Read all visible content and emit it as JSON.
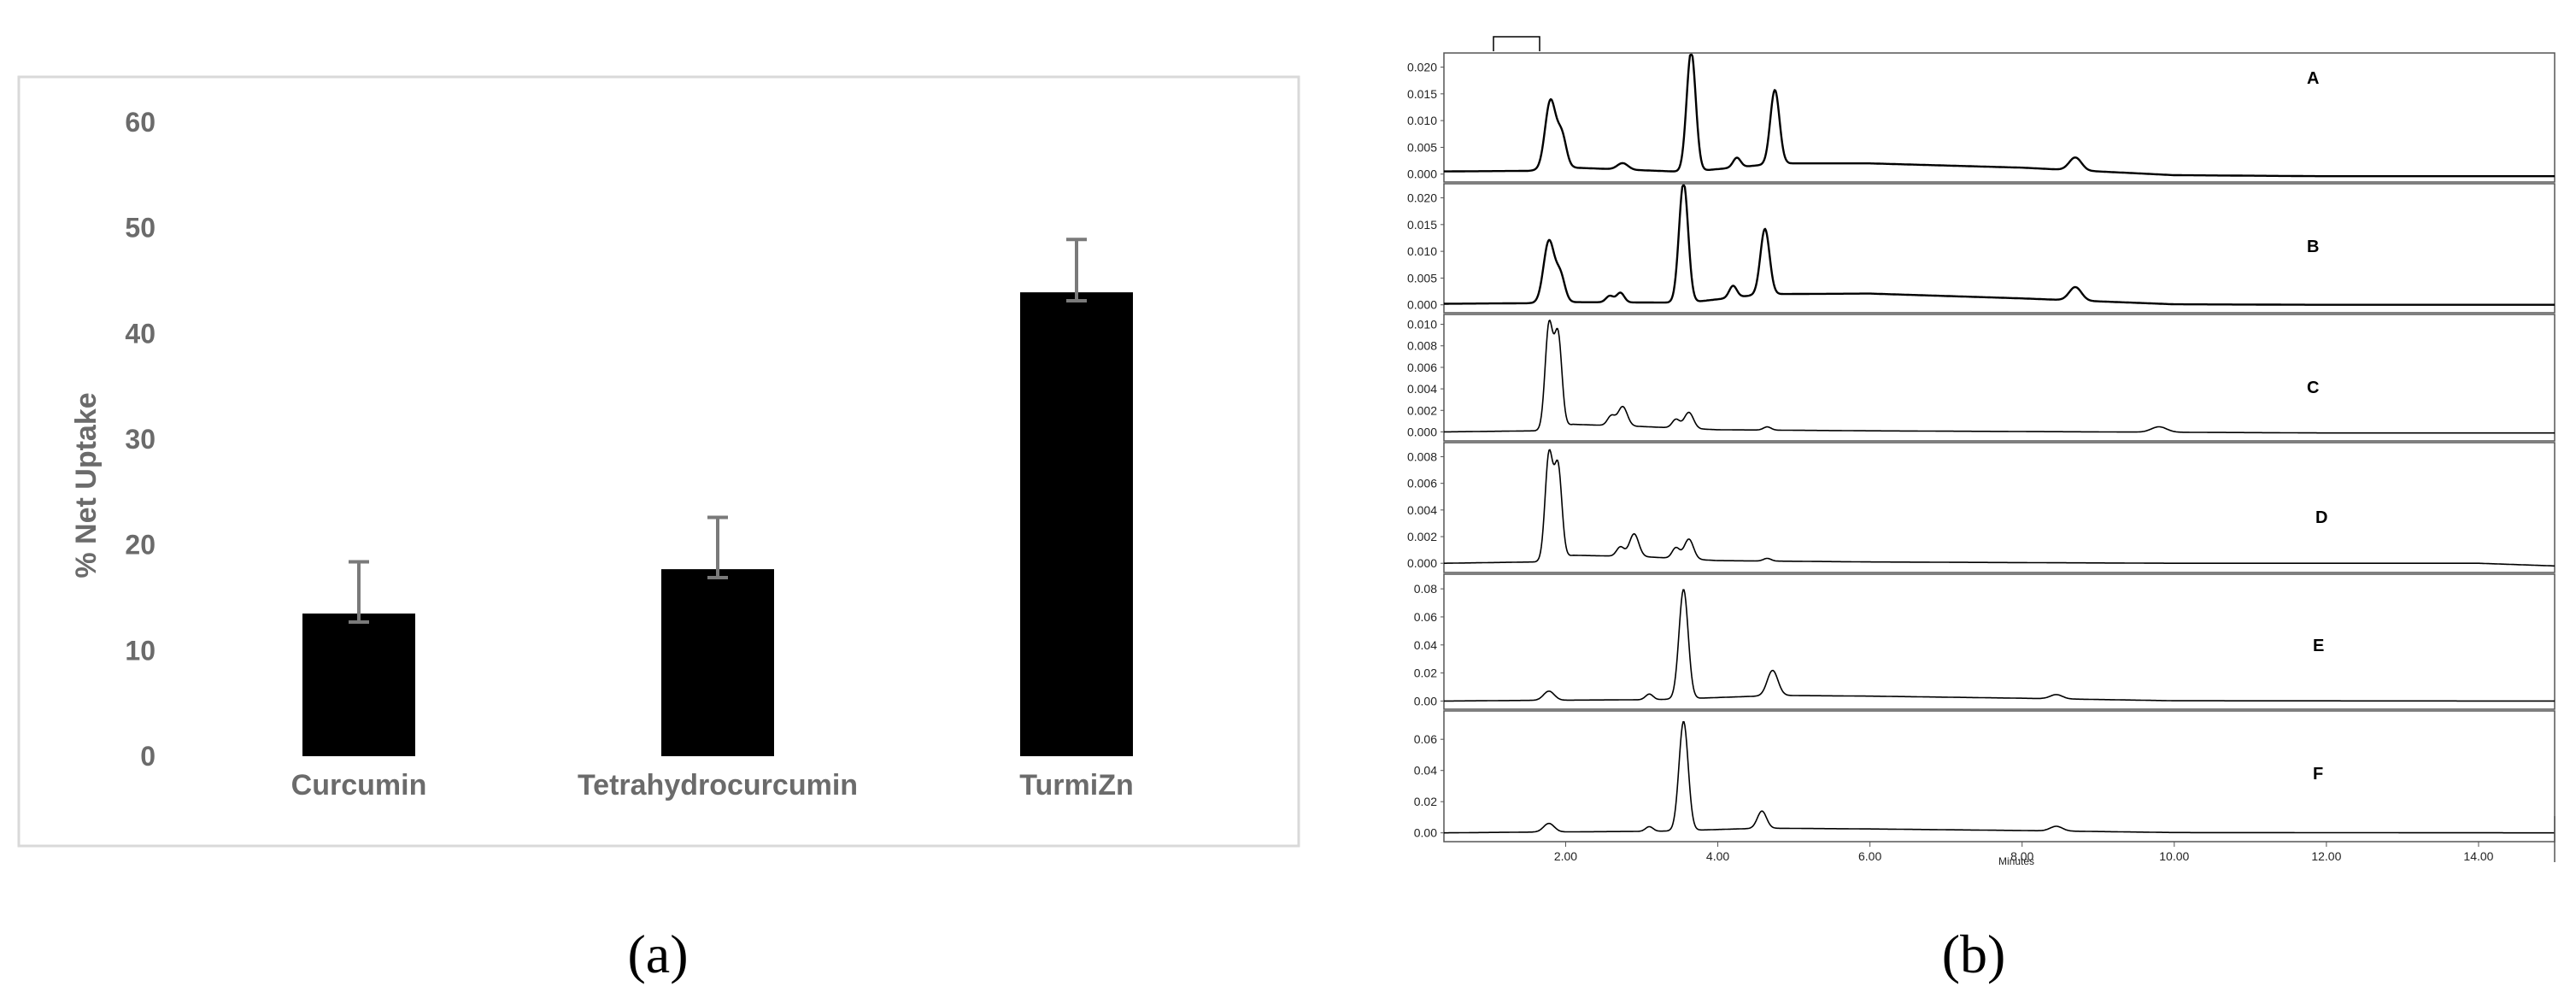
{
  "chart_data": [
    {
      "type": "bar",
      "categories": [
        "Curcumin",
        "Tetrahydrocurcumin",
        "TurmiZn"
      ],
      "values": [
        13.5,
        17.7,
        43.9
      ],
      "error_upper": [
        18.4,
        22.6,
        48.9
      ],
      "error_lower": [
        12.7,
        16.9,
        43.1
      ],
      "ylabel": "% Net Uptake",
      "ylim": [
        0,
        60
      ],
      "yticks": [
        0,
        10,
        20,
        30,
        40,
        50,
        60
      ],
      "bar_color": "#000000",
      "grid": false,
      "caption": "(a)"
    },
    {
      "type": "line",
      "xlabel": "Minutes",
      "xlim": [
        0.4,
        15.0
      ],
      "xticks": [
        2,
        4,
        6,
        8,
        10,
        12,
        14
      ],
      "xtick_labels": [
        "2.00",
        "4.00",
        "6.00",
        "8.00",
        "10.00",
        "12.00",
        "14.00"
      ],
      "caption": "(b)",
      "line_color": "#000000",
      "panels": [
        {
          "label": "A",
          "ylim": [
            -0.001,
            0.022
          ],
          "yticks": [
            "0.020",
            "0.015",
            "0.010",
            "0.005",
            "0.000"
          ],
          "baseline": [
            [
              0.4,
              0.0005
            ],
            [
              1.5,
              0.0006
            ],
            [
              2.1,
              0.0012
            ],
            [
              3.6,
              0.0004
            ],
            [
              4.8,
              0.002
            ],
            [
              6.0,
              0.002
            ],
            [
              8.0,
              0.0012
            ],
            [
              10.0,
              -0.0002
            ],
            [
              12.0,
              -0.0004
            ],
            [
              15.0,
              -0.0004
            ]
          ],
          "peaks": [
            {
              "rt": 1.8,
              "height": 0.0128,
              "width": 0.07
            },
            {
              "rt": 1.95,
              "height": 0.006,
              "width": 0.06
            },
            {
              "rt": 2.75,
              "height": 0.0012,
              "width": 0.07
            },
            {
              "rt": 3.65,
              "height": 0.0225,
              "width": 0.06
            },
            {
              "rt": 4.25,
              "height": 0.0018,
              "width": 0.05
            },
            {
              "rt": 4.75,
              "height": 0.0138,
              "width": 0.06
            },
            {
              "rt": 8.7,
              "height": 0.0024,
              "width": 0.08
            }
          ]
        },
        {
          "label": "B",
          "ylim": [
            -0.001,
            0.022
          ],
          "yticks": [
            "0.020",
            "0.015",
            "0.010",
            "0.005",
            "0.000"
          ],
          "baseline": [
            [
              0.4,
              0.0002
            ],
            [
              1.5,
              0.0003
            ],
            [
              2.1,
              0.0005
            ],
            [
              3.6,
              0.0004
            ],
            [
              4.6,
              0.002
            ],
            [
              6.0,
              0.0021
            ],
            [
              8.0,
              0.0012
            ],
            [
              10.0,
              0.0001
            ],
            [
              12.0,
              0.0
            ],
            [
              15.0,
              0.0
            ]
          ],
          "peaks": [
            {
              "rt": 1.78,
              "height": 0.0115,
              "width": 0.07
            },
            {
              "rt": 1.93,
              "height": 0.005,
              "width": 0.06
            },
            {
              "rt": 2.58,
              "height": 0.0012,
              "width": 0.05
            },
            {
              "rt": 2.72,
              "height": 0.0018,
              "width": 0.05
            },
            {
              "rt": 3.55,
              "height": 0.0225,
              "width": 0.06
            },
            {
              "rt": 4.2,
              "height": 0.0022,
              "width": 0.05
            },
            {
              "rt": 4.62,
              "height": 0.0122,
              "width": 0.06
            },
            {
              "rt": 8.7,
              "height": 0.0025,
              "width": 0.08
            }
          ]
        },
        {
          "label": "C",
          "ylim": [
            -0.0006,
            0.0106
          ],
          "yticks": [
            "0.010",
            "0.008",
            "0.006",
            "0.004",
            "0.002",
            "0.000"
          ],
          "baseline": [
            [
              0.4,
              0.0
            ],
            [
              1.6,
              0.0001
            ],
            [
              2.1,
              0.0007
            ],
            [
              3.0,
              0.0005
            ],
            [
              4.0,
              0.0002
            ],
            [
              6.0,
              0.0001
            ],
            [
              9.0,
              0.0
            ],
            [
              12.0,
              -0.0001
            ],
            [
              15.0,
              -0.0001
            ]
          ],
          "peaks": [
            {
              "rt": 1.78,
              "height": 0.0095,
              "width": 0.05
            },
            {
              "rt": 1.9,
              "height": 0.0085,
              "width": 0.05
            },
            {
              "rt": 2.6,
              "height": 0.0009,
              "width": 0.05
            },
            {
              "rt": 2.75,
              "height": 0.0018,
              "width": 0.06
            },
            {
              "rt": 3.45,
              "height": 0.0008,
              "width": 0.05
            },
            {
              "rt": 3.62,
              "height": 0.0015,
              "width": 0.06
            },
            {
              "rt": 4.65,
              "height": 0.0003,
              "width": 0.05
            },
            {
              "rt": 9.8,
              "height": 0.0005,
              "width": 0.1
            }
          ]
        },
        {
          "label": "D",
          "ylim": [
            -0.0005,
            0.0088
          ],
          "yticks": [
            "0.008",
            "0.006",
            "0.004",
            "0.002",
            "0.000"
          ],
          "baseline": [
            [
              0.4,
              0.0
            ],
            [
              1.6,
              0.0001
            ],
            [
              2.1,
              0.0006
            ],
            [
              3.0,
              0.0005
            ],
            [
              4.0,
              0.0002
            ],
            [
              6.0,
              0.0001
            ],
            [
              10.0,
              0.0
            ],
            [
              14.0,
              0.0
            ],
            [
              15.0,
              -0.0002
            ]
          ],
          "peaks": [
            {
              "rt": 1.78,
              "height": 0.0078,
              "width": 0.05
            },
            {
              "rt": 1.9,
              "height": 0.0068,
              "width": 0.05
            },
            {
              "rt": 2.72,
              "height": 0.0007,
              "width": 0.05
            },
            {
              "rt": 2.9,
              "height": 0.0017,
              "width": 0.06
            },
            {
              "rt": 3.45,
              "height": 0.0008,
              "width": 0.05
            },
            {
              "rt": 3.62,
              "height": 0.0015,
              "width": 0.06
            },
            {
              "rt": 4.65,
              "height": 0.0002,
              "width": 0.05
            }
          ]
        },
        {
          "label": "E",
          "ylim": [
            -0.004,
            0.088
          ],
          "yticks": [
            "0.08",
            "0.06",
            "0.04",
            "0.02",
            "0.00"
          ],
          "baseline": [
            [
              0.4,
              0.0
            ],
            [
              1.6,
              0.0005
            ],
            [
              3.2,
              0.001
            ],
            [
              4.8,
              0.004
            ],
            [
              6.0,
              0.0035
            ],
            [
              8.0,
              0.002
            ],
            [
              10.0,
              0.0002
            ],
            [
              15.0,
              0.0
            ]
          ],
          "peaks": [
            {
              "rt": 1.78,
              "height": 0.0065,
              "width": 0.07
            },
            {
              "rt": 3.1,
              "height": 0.004,
              "width": 0.05
            },
            {
              "rt": 3.55,
              "height": 0.078,
              "width": 0.06
            },
            {
              "rt": 4.72,
              "height": 0.018,
              "width": 0.07
            },
            {
              "rt": 8.45,
              "height": 0.003,
              "width": 0.08
            }
          ]
        },
        {
          "label": "F",
          "ylim": [
            -0.004,
            0.076
          ],
          "yticks": [
            "0.06",
            "0.04",
            "0.02",
            "0.00"
          ],
          "baseline": [
            [
              0.4,
              0.0
            ],
            [
              1.6,
              0.0005
            ],
            [
              3.2,
              0.001
            ],
            [
              4.6,
              0.003
            ],
            [
              6.0,
              0.0025
            ],
            [
              8.0,
              0.0015
            ],
            [
              10.0,
              0.0002
            ],
            [
              15.0,
              0.0
            ]
          ],
          "peaks": [
            {
              "rt": 1.78,
              "height": 0.0055,
              "width": 0.07
            },
            {
              "rt": 3.1,
              "height": 0.003,
              "width": 0.05
            },
            {
              "rt": 3.55,
              "height": 0.07,
              "width": 0.06
            },
            {
              "rt": 4.58,
              "height": 0.011,
              "width": 0.06
            },
            {
              "rt": 8.45,
              "height": 0.003,
              "width": 0.08
            }
          ]
        }
      ]
    }
  ]
}
